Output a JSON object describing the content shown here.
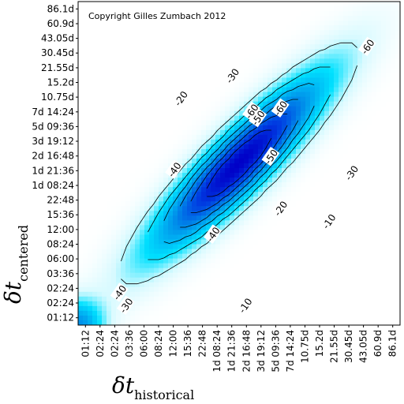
{
  "chart_data": {
    "type": "heatmap",
    "title": "",
    "annotation": "Copyright Gilles Zumbach 2012",
    "xlabel": {
      "symbol": "δt",
      "subscript": "historical"
    },
    "ylabel": {
      "symbol": "δt",
      "subscript": "centered"
    },
    "x_ticks": [
      "01:12",
      "02:24",
      "02:24",
      "03:36",
      "06:00",
      "08:24",
      "12:00",
      "15:36",
      "22:48",
      "1d 08:24",
      "1d 21:36",
      "2d 16:48",
      "3d 19:12",
      "5d 09:36",
      "7d 14:24",
      "10.75d",
      "15.2d",
      "21.55d",
      "30.45d",
      "43.05d",
      "60.9d",
      "86.1d"
    ],
    "y_ticks": [
      "01:12",
      "02:24",
      "02:24",
      "03:36",
      "06:00",
      "08:24",
      "12:00",
      "15:36",
      "22:48",
      "1d 08:24",
      "1d 21:36",
      "2d 16:48",
      "3d 19:12",
      "5d 09:36",
      "7d 14:24",
      "10.75d",
      "15.2d",
      "21.55d",
      "30.45d",
      "43.05d",
      "60.9d",
      "86.1d"
    ],
    "contour_levels": [
      -10,
      -20,
      -30,
      -40,
      -50,
      -60
    ],
    "contour_labels": [
      "-10",
      "-10",
      "-20",
      "-20",
      "-30",
      "-30",
      "-30",
      "-40",
      "-40",
      "-40",
      "-50",
      "-50",
      "-60",
      "-60",
      "-60"
    ],
    "colormap": {
      "low": "#0000ff",
      "mid": "#00ccff",
      "high": "#ffffff"
    }
  }
}
